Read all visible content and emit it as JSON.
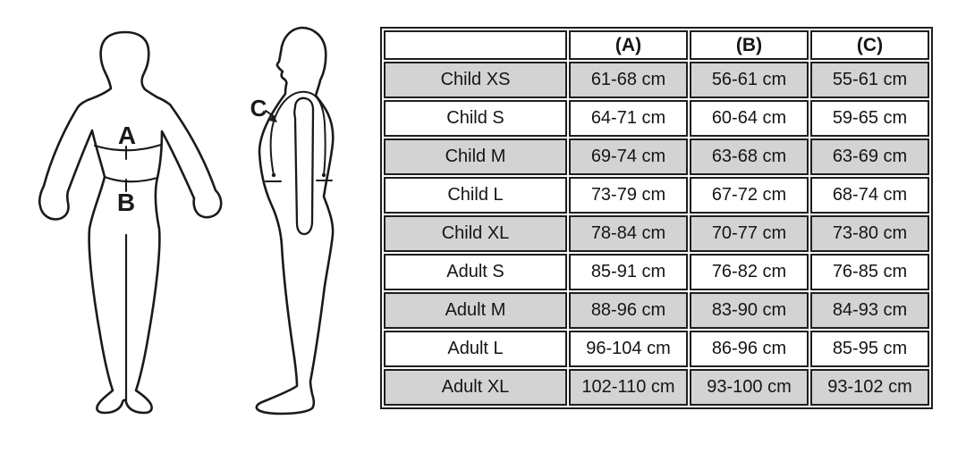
{
  "figures": {
    "front_view": {
      "measurement_a_label": "A",
      "measurement_b_label": "B"
    },
    "side_view": {
      "measurement_c_label": "C"
    }
  },
  "size_table": {
    "columns": [
      "",
      "(A)",
      "(B)",
      "(C)"
    ],
    "rows": [
      [
        "Child XS",
        "61-68 cm",
        "56-61 cm",
        "55-61 cm"
      ],
      [
        "Child S",
        "64-71 cm",
        "60-64 cm",
        "59-65 cm"
      ],
      [
        "Child M",
        "69-74 cm",
        "63-68 cm",
        "63-69 cm"
      ],
      [
        "Child L",
        "73-79 cm",
        "67-72 cm",
        "68-74 cm"
      ],
      [
        "Child XL",
        "78-84 cm",
        "70-77 cm",
        "73-80 cm"
      ],
      [
        "Adult S",
        "85-91 cm",
        "76-82 cm",
        "76-85 cm"
      ],
      [
        "Adult M",
        "88-96 cm",
        "83-90 cm",
        "84-93 cm"
      ],
      [
        "Adult L",
        "96-104 cm",
        "86-96 cm",
        "85-95 cm"
      ],
      [
        "Adult XL",
        "102-110 cm",
        "93-100 cm",
        "93-102 cm"
      ]
    ]
  },
  "colors": {
    "background": "#ffffff",
    "line": "#1a1a1a",
    "table_border": "#1e1e1e",
    "row_shaded": "#d3d3d3",
    "row_plain": "#ffffff",
    "text": "#151515"
  }
}
